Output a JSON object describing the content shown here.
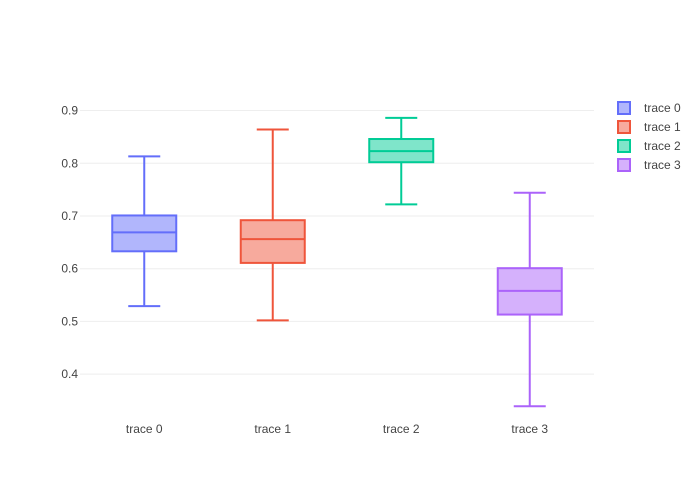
{
  "chart_data": {
    "type": "box",
    "title": "",
    "xlabel": "",
    "ylabel": "",
    "ylim": [
      0.313,
      0.92
    ],
    "yticks": [
      0.4,
      0.5,
      0.6,
      0.7,
      0.8,
      0.9
    ],
    "ytick_labels": [
      "0.4",
      "0.5",
      "0.6",
      "0.7",
      "0.8",
      "0.9"
    ],
    "grid": true,
    "legend_position": "top-right",
    "categories": [
      "trace 0",
      "trace 1",
      "trace 2",
      "trace 3"
    ],
    "series": [
      {
        "name": "trace 0",
        "color": "#636efa",
        "min": 0.529,
        "q1": 0.633,
        "median": 0.669,
        "q3": 0.701,
        "max": 0.813
      },
      {
        "name": "trace 1",
        "color": "#ef553b",
        "min": 0.502,
        "q1": 0.611,
        "median": 0.656,
        "q3": 0.692,
        "max": 0.864
      },
      {
        "name": "trace 2",
        "color": "#00cc96",
        "min": 0.722,
        "q1": 0.802,
        "median": 0.823,
        "q3": 0.846,
        "max": 0.886
      },
      {
        "name": "trace 3",
        "color": "#ab63fa",
        "min": 0.339,
        "q1": 0.513,
        "median": 0.558,
        "q3": 0.601,
        "max": 0.744
      }
    ]
  }
}
